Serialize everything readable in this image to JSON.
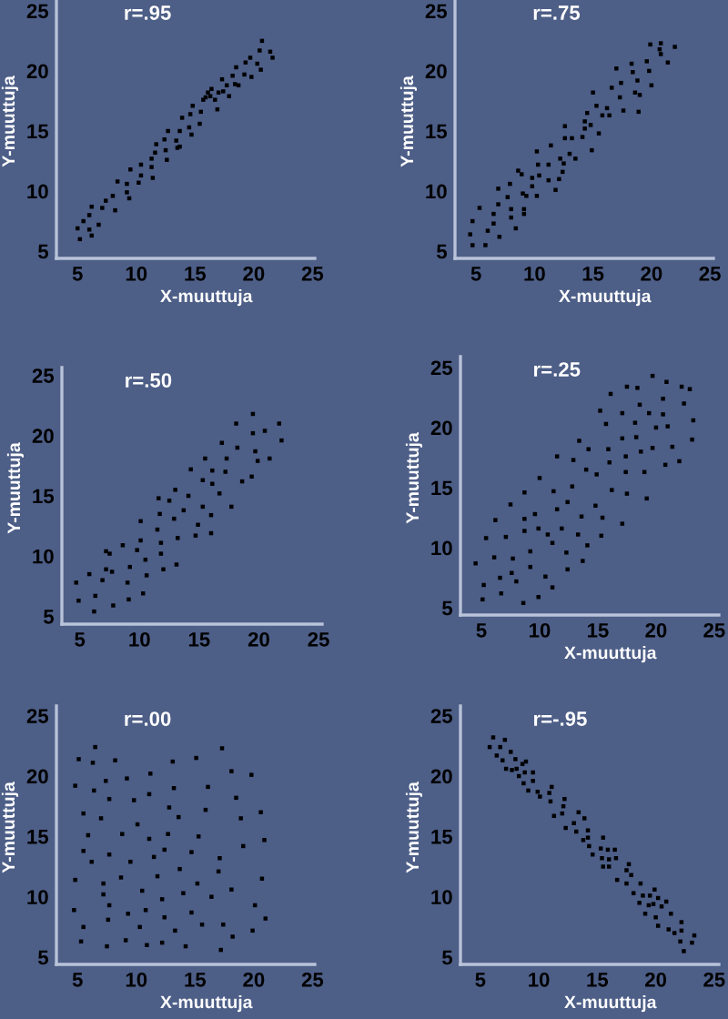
{
  "chart_data": [
    {
      "type": "scatter",
      "title": "r=.95",
      "xlabel": "X-muuttuja",
      "ylabel": "Y-muuttuja",
      "color": "#000000",
      "marker": "square",
      "xlim": [
        3.2,
        25.2
      ],
      "ylim": [
        4.4,
        25.9
      ],
      "xticks": [
        5,
        10,
        15,
        20,
        25
      ],
      "yticks": [
        5,
        10,
        15,
        20,
        25
      ],
      "x": [
        5.0,
        5.2,
        5.5,
        6.0,
        6.0,
        6.2,
        6.2,
        6.8,
        7.1,
        7.4,
        8.0,
        8.2,
        8.4,
        9.2,
        9.2,
        9.4,
        9.5,
        10.2,
        10.4,
        10.4,
        11.3,
        11.3,
        11.4,
        11.6,
        11.7,
        12.4,
        12.5,
        12.6,
        12.7,
        13.4,
        13.5,
        13.7,
        13.7,
        13.9,
        14.5,
        14.6,
        14.7,
        14.8,
        15.4,
        15.5,
        15.7,
        15.9,
        16.1,
        16.3,
        16.4,
        16.7,
        16.9,
        17.0,
        17.3,
        17.4,
        17.7,
        17.9,
        18.2,
        18.4,
        18.5,
        18.7,
        19.2,
        19.3,
        19.7,
        19.8,
        20.3,
        20.5,
        20.6,
        20.7,
        21.4,
        21.6
      ],
      "values": [
        6.9,
        6.0,
        7.5,
        8.0,
        6.8,
        6.3,
        8.7,
        7.2,
        8.6,
        9.2,
        9.6,
        8.4,
        10.8,
        10.6,
        9.9,
        9.4,
        11.8,
        10.7,
        12.2,
        11.3,
        12.7,
        12.0,
        11.1,
        13.2,
        13.9,
        14.3,
        13.4,
        12.6,
        15.0,
        14.2,
        13.6,
        15.0,
        13.7,
        16.1,
        15.3,
        16.4,
        14.7,
        17.1,
        15.6,
        16.6,
        17.6,
        17.8,
        18.2,
        17.9,
        18.5,
        17.6,
        16.8,
        18.2,
        19.3,
        18.3,
        18.8,
        17.9,
        19.6,
        18.9,
        20.3,
        18.8,
        19.7,
        20.7,
        21.1,
        19.5,
        20.6,
        21.7,
        20.1,
        22.5,
        21.6,
        21.1
      ]
    },
    {
      "type": "scatter",
      "title": "r=.75",
      "xlabel": "X-muuttuja",
      "ylabel": "Y-muuttuja",
      "color": "#000000",
      "marker": "square",
      "xlim": [
        3.2,
        25.3
      ],
      "ylim": [
        4.4,
        25.9
      ],
      "xticks": [
        5,
        10,
        15,
        20,
        25
      ],
      "yticks": [
        5,
        10,
        15,
        20,
        25
      ],
      "x": [
        4.5,
        4.7,
        4.7,
        5.3,
        5.8,
        6.0,
        6.5,
        6.5,
        6.9,
        6.9,
        7.0,
        7.7,
        7.9,
        8.0,
        8.0,
        8.4,
        8.6,
        8.9,
        9.0,
        9.1,
        9.1,
        9.3,
        9.8,
        9.8,
        10.2,
        10.2,
        10.3,
        10.4,
        11.2,
        11.2,
        11.4,
        11.8,
        12.1,
        12.2,
        12.4,
        12.5,
        12.6,
        12.6,
        13.0,
        13.2,
        13.5,
        14.1,
        14.3,
        14.3,
        14.5,
        14.8,
        14.9,
        15.0,
        15.3,
        15.5,
        15.8,
        16.2,
        16.4,
        16.6,
        17.0,
        17.3,
        17.4,
        17.6,
        18.3,
        18.4,
        18.6,
        18.8,
        18.9,
        19.0,
        19.6,
        19.8,
        19.9,
        20.0,
        20.7,
        20.8,
        20.8,
        21.4,
        22.0
      ],
      "values": [
        6.4,
        7.5,
        5.5,
        8.6,
        5.5,
        6.7,
        8.1,
        7.3,
        10.2,
        8.9,
        6.2,
        9.5,
        10.6,
        8.5,
        7.8,
        6.9,
        11.7,
        11.4,
        9.8,
        8.5,
        8.1,
        9.6,
        11.1,
        10.4,
        9.6,
        13.3,
        12.2,
        11.3,
        12.2,
        10.9,
        13.8,
        10.1,
        11.0,
        12.7,
        11.6,
        12.3,
        14.4,
        15.4,
        13.1,
        14.4,
        12.7,
        14.5,
        15.8,
        15.2,
        16.5,
        15.5,
        13.4,
        18.2,
        17.1,
        14.8,
        16.3,
        16.9,
        16.3,
        18.6,
        20.2,
        17.8,
        19.0,
        16.7,
        20.6,
        19.9,
        18.2,
        19.2,
        16.6,
        18.0,
        20.8,
        20.0,
        22.2,
        18.8,
        21.8,
        22.3,
        21.4,
        20.7,
        22.0
      ]
    },
    {
      "type": "scatter",
      "title": "r=.50",
      "ylabel": "Y-muuttuja",
      "color": "#000000",
      "marker": "square",
      "xlim": [
        3.5,
        25.3
      ],
      "ylim": [
        4.35,
        25.65
      ],
      "xticks": [
        5,
        10,
        15,
        20,
        25
      ],
      "yticks": [
        5,
        10,
        15,
        20,
        25
      ],
      "x": [
        4.7,
        4.9,
        5.8,
        6.2,
        6.3,
        6.9,
        7.2,
        7.2,
        7.5,
        7.7,
        7.8,
        8.6,
        9.0,
        9.1,
        9.2,
        9.8,
        10.1,
        10.3,
        10.5,
        10.6,
        10.1,
        11.5,
        11.8,
        11.8,
        12.0,
        11.6,
        11.7,
        12.5,
        13.0,
        12.9,
        13.2,
        13.1,
        13.7,
        14.1,
        14.3,
        14.7,
        14.9,
        15.3,
        15.3,
        15.5,
        16.0,
        16.0,
        16.1,
        16.1,
        16.7,
        16.9,
        17.2,
        17.3,
        17.7,
        18.1,
        18.2,
        18.6,
        19.4,
        19.5,
        19.5,
        19.7,
        19.9,
        20.5,
        20.9,
        21.7,
        21.9
      ],
      "values": [
        7.8,
        6.3,
        8.5,
        5.4,
        6.7,
        8.0,
        10.4,
        8.9,
        10.2,
        8.7,
        5.9,
        10.9,
        7.8,
        6.4,
        9.1,
        10.5,
        11.3,
        6.9,
        9.7,
        8.4,
        12.9,
        12.2,
        10.2,
        11.1,
        8.9,
        14.8,
        13.5,
        14.6,
        15.5,
        13.1,
        11.5,
        9.3,
        13.8,
        15.0,
        17.2,
        11.7,
        12.6,
        14.1,
        16.3,
        18.1,
        11.9,
        13.4,
        17.1,
        16.0,
        15.2,
        19.4,
        17.0,
        18.1,
        14.1,
        21.0,
        19.0,
        16.2,
        16.6,
        20.2,
        21.8,
        18.7,
        17.9,
        20.4,
        18.1,
        21.0,
        19.6
      ]
    },
    {
      "type": "scatter",
      "title": "r=.25",
      "xlabel": "X-muuttuja",
      "ylabel": "Y-muuttuja",
      "color": "#000000",
      "marker": "square",
      "xlim": [
        3.2,
        25.4
      ],
      "ylim": [
        4.4,
        25.9
      ],
      "xticks": [
        5,
        10,
        15,
        20,
        25
      ],
      "yticks": [
        5,
        10,
        15,
        20,
        25
      ],
      "x": [
        4.5,
        5.1,
        5.2,
        5.4,
        6.1,
        6.2,
        6.6,
        6.7,
        7.1,
        7.5,
        7.6,
        7.7,
        8.0,
        8.6,
        8.7,
        8.7,
        8.7,
        9.2,
        9.2,
        9.6,
        9.9,
        9.9,
        10.0,
        10.5,
        10.7,
        11.1,
        11.1,
        11.2,
        11.5,
        11.5,
        11.9,
        12.3,
        12.4,
        12.4,
        12.8,
        12.9,
        13.4,
        13.3,
        13.6,
        13.7,
        14.0,
        14.2,
        14.1,
        14.8,
        14.9,
        15.3,
        15.4,
        15.2,
        15.7,
        15.9,
        16.0,
        16.1,
        16.2,
        17.1,
        17.1,
        17.1,
        17.4,
        17.4,
        17.5,
        17.5,
        18.2,
        18.3,
        18.4,
        18.6,
        18.7,
        19.0,
        19.2,
        19.4,
        19.7,
        19.7,
        20.0,
        20.6,
        20.6,
        20.9,
        20.8,
        21.0,
        21.4,
        22.0,
        22.2,
        22.4,
        22.9,
        23.1,
        23.2
      ],
      "values": [
        8.7,
        5.7,
        6.9,
        10.8,
        9.2,
        12.3,
        7.5,
        6.2,
        10.9,
        13.6,
        7.9,
        9.1,
        7.2,
        5.4,
        12.4,
        11.4,
        14.6,
        9.7,
        8.4,
        12.8,
        5.9,
        11.6,
        15.8,
        7.6,
        11.1,
        10.4,
        6.7,
        14.7,
        17.6,
        13.2,
        11.6,
        9.6,
        8.2,
        13.8,
        15.1,
        17.3,
        18.9,
        11.1,
        12.6,
        8.9,
        16.5,
        18.2,
        10.2,
        13.5,
        16.1,
        11.0,
        12.5,
        21.4,
        20.3,
        18.2,
        17.1,
        22.8,
        14.8,
        19.1,
        21.2,
        12.0,
        16.3,
        17.6,
        14.5,
        23.4,
        20.4,
        19.2,
        23.3,
        21.9,
        18.0,
        16.3,
        14.1,
        21.2,
        24.3,
        18.3,
        20.0,
        21.1,
        22.4,
        23.8,
        16.9,
        20.1,
        18.4,
        17.2,
        23.4,
        22.0,
        23.2,
        19.0,
        20.6
      ]
    },
    {
      "type": "scatter",
      "title": "r=.00",
      "xlabel": "X-muuttuja",
      "ylabel": "Y-muuttuja",
      "color": "#000000",
      "marker": "square",
      "xlim": [
        3.2,
        25.2
      ],
      "ylim": [
        4.4,
        25.8
      ],
      "xticks": [
        5,
        10,
        15,
        20,
        25
      ],
      "yticks": [
        5,
        10,
        15,
        20,
        25
      ],
      "x": [
        4.7,
        4.8,
        4.8,
        5.1,
        5.3,
        5.5,
        5.5,
        5.5,
        5.9,
        6.2,
        6.5,
        6.3,
        6.4,
        7.0,
        7.2,
        7.2,
        7.4,
        7.5,
        7.6,
        7.7,
        7.7,
        7.7,
        8.2,
        8.7,
        8.8,
        9.1,
        9.2,
        9.3,
        9.5,
        9.8,
        10.1,
        10.3,
        10.5,
        10.8,
        10.9,
        11.1,
        11.1,
        11.2,
        11.5,
        11.8,
        12.2,
        12.2,
        12.4,
        12.4,
        12.7,
        12.8,
        13.1,
        13.2,
        13.3,
        13.6,
        13.7,
        14.0,
        14.2,
        14.7,
        14.7,
        15.1,
        15.2,
        15.3,
        15.6,
        15.9,
        16.1,
        16.4,
        17.0,
        17.1,
        17.2,
        17.3,
        17.4,
        18.1,
        18.2,
        18.1,
        18.5,
        18.9,
        19.1,
        19.8,
        19.9,
        20.1,
        20.6,
        20.7,
        20.9,
        21.0
      ],
      "values": [
        8.9,
        11.4,
        19.2,
        21.4,
        6.3,
        7.5,
        16.9,
        13.8,
        15.1,
        12.9,
        22.4,
        21.1,
        18.8,
        16.5,
        11.1,
        10.2,
        19.6,
        5.9,
        8.1,
        9.3,
        18.1,
        13.5,
        21.3,
        11.6,
        15.2,
        6.4,
        19.8,
        8.6,
        12.9,
        18.0,
        16.0,
        7.5,
        10.5,
        8.9,
        6.0,
        18.5,
        14.8,
        20.2,
        13.3,
        11.7,
        6.2,
        9.8,
        13.9,
        8.3,
        15.2,
        17.4,
        21.2,
        19.0,
        7.2,
        16.6,
        12.3,
        10.3,
        5.9,
        13.7,
        8.7,
        21.5,
        11.1,
        15.0,
        7.7,
        17.2,
        19.1,
        10.0,
        12.1,
        13.2,
        5.6,
        22.3,
        7.7,
        20.4,
        6.7,
        10.6,
        18.2,
        16.5,
        14.2,
        20.1,
        7.2,
        9.3,
        17.0,
        11.5,
        14.7,
        8.2
      ]
    },
    {
      "type": "scatter",
      "title": "r=-.95",
      "xlabel": "X-muuttuja",
      "ylabel": "Y-muuttuja",
      "color": "#000000",
      "marker": "square",
      "xlim": [
        3.3,
        25.4
      ],
      "ylim": [
        4.4,
        25.8
      ],
      "xticks": [
        5,
        10,
        15,
        20,
        25
      ],
      "yticks": [
        5,
        10,
        15,
        20,
        25
      ],
      "x": [
        5.8,
        6.1,
        6.4,
        6.7,
        6.9,
        7.1,
        7.2,
        7.6,
        7.7,
        8.0,
        8.1,
        8.3,
        8.6,
        8.7,
        8.8,
        8.9,
        9.1,
        9.5,
        9.5,
        9.9,
        10.1,
        10.9,
        11.0,
        11.1,
        11.3,
        12.0,
        12.1,
        12.2,
        12.3,
        13.0,
        13.2,
        13.4,
        13.8,
        13.9,
        14.2,
        14.2,
        14.3,
        14.6,
        15.3,
        15.4,
        15.5,
        15.5,
        15.9,
        16.0,
        16.0,
        16.5,
        16.6,
        16.7,
        17.5,
        17.7,
        17.5,
        17.9,
        18.1,
        18.6,
        18.7,
        18.9,
        19.1,
        19.4,
        19.5,
        19.8,
        19.9,
        20.0,
        20.2,
        20.2,
        20.5,
        20.9,
        21.1,
        21.3,
        21.6,
        22.2,
        22.2,
        22.1,
        22.4,
        23.1,
        23.3
      ],
      "values": [
        22.4,
        23.2,
        21.7,
        22.4,
        21.3,
        23.0,
        20.6,
        22.0,
        20.5,
        21.4,
        20.6,
        20.0,
        21.0,
        19.4,
        20.3,
        21.2,
        18.8,
        20.3,
        19.6,
        18.7,
        18.3,
        18.6,
        17.9,
        19.1,
        16.7,
        16.9,
        17.5,
        18.1,
        15.7,
        16.1,
        15.4,
        17.0,
        14.7,
        16.5,
        15.5,
        14.9,
        14.2,
        13.5,
        14.0,
        13.2,
        14.9,
        12.5,
        13.9,
        13.1,
        12.5,
        13.9,
        13.2,
        11.4,
        12.2,
        12.7,
        11.1,
        11.8,
        10.3,
        9.5,
        11.1,
        10.1,
        8.6,
        9.3,
        10.1,
        9.4,
        10.6,
        8.3,
        9.9,
        7.6,
        9.2,
        9.6,
        7.3,
        8.6,
        7.0,
        7.9,
        7.2,
        6.3,
        5.5,
        6.2,
        6.8
      ]
    }
  ]
}
